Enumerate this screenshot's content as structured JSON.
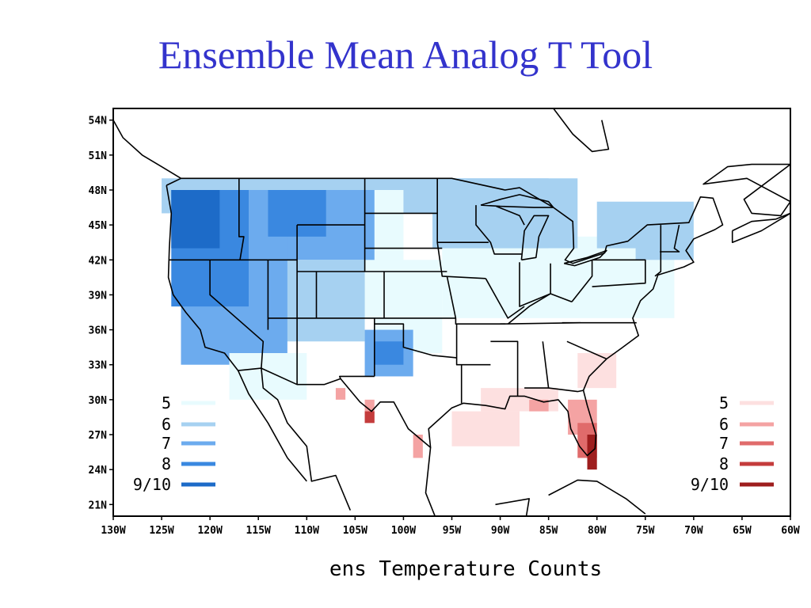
{
  "title": "Ensemble Mean Analog T Tool",
  "caption": "ens Temperature Counts",
  "axes": {
    "lat_ticks": [
      "54N",
      "51N",
      "48N",
      "45N",
      "42N",
      "39N",
      "36N",
      "33N",
      "30N",
      "27N",
      "24N",
      "21N"
    ],
    "lon_ticks": [
      "130W",
      "125W",
      "120W",
      "115W",
      "110W",
      "105W",
      "100W",
      "95W",
      "90W",
      "85W",
      "80W",
      "75W",
      "70W",
      "65W",
      "60W"
    ],
    "lat_range": [
      20,
      55
    ],
    "lon_range": [
      -130,
      -60
    ]
  },
  "legend_cold": {
    "placement": "bottom-left",
    "items": [
      {
        "label": "5",
        "color": "#e8fbfe"
      },
      {
        "label": "6",
        "color": "#a6d1f1"
      },
      {
        "label": "7",
        "color": "#6cabee"
      },
      {
        "label": "8",
        "color": "#3a88e0"
      },
      {
        "label": "9/10",
        "color": "#1d6bc8"
      }
    ]
  },
  "legend_warm": {
    "placement": "bottom-right",
    "items": [
      {
        "label": "5",
        "color": "#fde0e0"
      },
      {
        "label": "6",
        "color": "#f4a3a3"
      },
      {
        "label": "7",
        "color": "#e06b6b"
      },
      {
        "label": "8",
        "color": "#c43c3c"
      },
      {
        "label": "9/10",
        "color": "#9e1e1e"
      }
    ]
  },
  "map_data": {
    "cold_regions": [
      {
        "level": 6,
        "lon": [
          -125,
          -85
        ],
        "lat": [
          46,
          49
        ]
      },
      {
        "level": 5,
        "lon": [
          -110,
          -100
        ],
        "lat": [
          37,
          48
        ]
      },
      {
        "level": 5,
        "lon": [
          -103,
          -96
        ],
        "lat": [
          34,
          42
        ]
      },
      {
        "level": 5,
        "lon": [
          -96,
          -72
        ],
        "lat": [
          37,
          44
        ]
      },
      {
        "level": 6,
        "lon": [
          -97,
          -82
        ],
        "lat": [
          43,
          49
        ]
      },
      {
        "level": 6,
        "lon": [
          -80,
          -70
        ],
        "lat": [
          42,
          47
        ]
      },
      {
        "level": 5,
        "lon": [
          -85,
          -76
        ],
        "lat": [
          40,
          43
        ]
      },
      {
        "level": 7,
        "lon": [
          -116,
          -103
        ],
        "lat": [
          42,
          48
        ]
      },
      {
        "level": 6,
        "lon": [
          -114,
          -104
        ],
        "lat": [
          35,
          42
        ]
      },
      {
        "level": 7,
        "lon": [
          -123,
          -112
        ],
        "lat": [
          33,
          48
        ]
      },
      {
        "level": 8,
        "lon": [
          -124,
          -116
        ],
        "lat": [
          38,
          48
        ]
      },
      {
        "level": 9,
        "lon": [
          -124,
          -119
        ],
        "lat": [
          43,
          48
        ]
      },
      {
        "level": 8,
        "lon": [
          -114,
          -108
        ],
        "lat": [
          44,
          48
        ]
      },
      {
        "level": 7,
        "lon": [
          -104,
          -99
        ],
        "lat": [
          32,
          36
        ]
      },
      {
        "level": 8,
        "lon": [
          -103,
          -100
        ],
        "lat": [
          33,
          35
        ]
      },
      {
        "level": 5,
        "lon": [
          -118,
          -110
        ],
        "lat": [
          30,
          34
        ]
      }
    ],
    "warm_regions": [
      {
        "level": 6,
        "lon": [
          -104,
          -103
        ],
        "lat": [
          28,
          30
        ]
      },
      {
        "level": 8,
        "lon": [
          -104,
          -103
        ],
        "lat": [
          28,
          29
        ]
      },
      {
        "level": 6,
        "lon": [
          -107,
          -106
        ],
        "lat": [
          30,
          31
        ]
      },
      {
        "level": 5,
        "lon": [
          -95,
          -88
        ],
        "lat": [
          26,
          29
        ]
      },
      {
        "level": 6,
        "lon": [
          -99,
          -98
        ],
        "lat": [
          25,
          27
        ]
      },
      {
        "level": 5,
        "lon": [
          -92,
          -84
        ],
        "lat": [
          29,
          31
        ]
      },
      {
        "level": 6,
        "lon": [
          -87,
          -85
        ],
        "lat": [
          29,
          30
        ]
      },
      {
        "level": 6,
        "lon": [
          -83,
          -80
        ],
        "lat": [
          27,
          30
        ]
      },
      {
        "level": 7,
        "lon": [
          -82,
          -80
        ],
        "lat": [
          25,
          28
        ]
      },
      {
        "level": 9,
        "lon": [
          -81,
          -80
        ],
        "lat": [
          24,
          27
        ]
      },
      {
        "level": 5,
        "lon": [
          -82,
          -78
        ],
        "lat": [
          31,
          34
        ]
      }
    ]
  }
}
